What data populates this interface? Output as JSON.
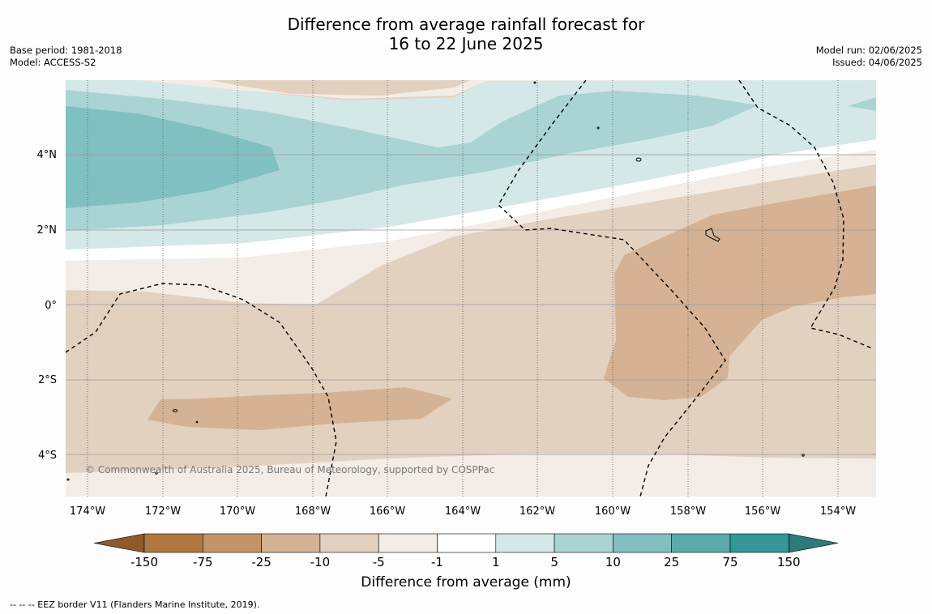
{
  "title": {
    "line1": "Difference from average rainfall forecast for",
    "line2": "16 to 22 June 2025"
  },
  "meta_left": {
    "base_period": "Base period: 1981-2018",
    "model": "Model: ACCESS-S2"
  },
  "meta_right": {
    "model_run": "Model run: 02/06/2025",
    "issued": "Issued: 04/06/2025"
  },
  "map": {
    "lat_labels": [
      "4°N",
      "2°N",
      "0°",
      "2°S",
      "4°S"
    ],
    "lon_labels": [
      "174°W",
      "172°W",
      "170°W",
      "168°W",
      "166°W",
      "164°W",
      "162°W",
      "160°W",
      "158°W",
      "156°W",
      "154°W"
    ],
    "copyright": "© Commonwealth of Australia 2025, Bureau of Meteorology, supported by COSPPac"
  },
  "colorbar": {
    "tick_labels": [
      "-150",
      "-75",
      "-25",
      "-10",
      "-5",
      "-1",
      "1",
      "5",
      "10",
      "25",
      "75",
      "150"
    ],
    "colors": [
      "#b07840",
      "#c49469",
      "#d4b293",
      "#e3d1c0",
      "#f4ece6",
      "#ffffff",
      "#d4e8e8",
      "#aad4d4",
      "#81c0c0",
      "#5aabab",
      "#339797"
    ],
    "under_color": "#8e5a2a",
    "over_color": "#2b7b7b",
    "label": "Difference from average (mm)"
  },
  "footnote": "--  --  -- EEZ border V11 (Flanders Marine Institute, 2019)."
}
